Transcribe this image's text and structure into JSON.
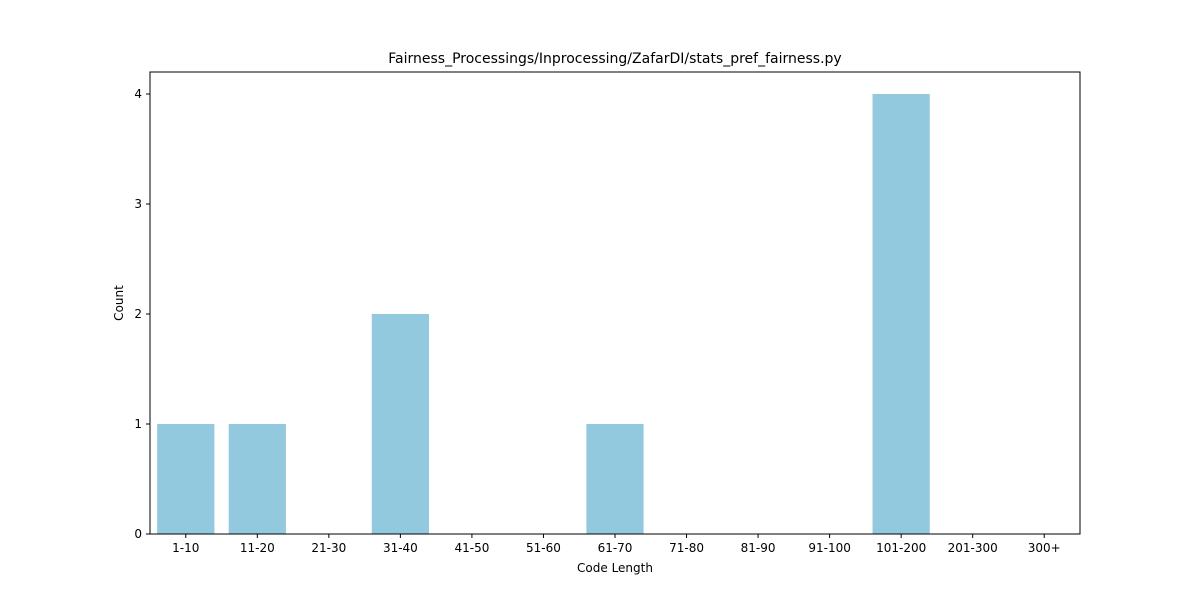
{
  "chart_data": {
    "type": "bar",
    "title": "Fairness_Processings/Inprocessing/ZafarDI/stats_pref_fairness.py",
    "xlabel": "Code Length",
    "ylabel": "Count",
    "categories": [
      "1-10",
      "11-20",
      "21-30",
      "31-40",
      "41-50",
      "51-60",
      "61-70",
      "71-80",
      "81-90",
      "91-100",
      "101-200",
      "201-300",
      "300+"
    ],
    "values": [
      1,
      1,
      0,
      2,
      0,
      0,
      1,
      0,
      0,
      0,
      4,
      0,
      0
    ],
    "ylim": [
      0,
      4.2
    ],
    "yticks": [
      "0",
      "1",
      "2",
      "3",
      "4"
    ],
    "bar_color": "#92c9de",
    "grid": false,
    "legend": "none"
  }
}
